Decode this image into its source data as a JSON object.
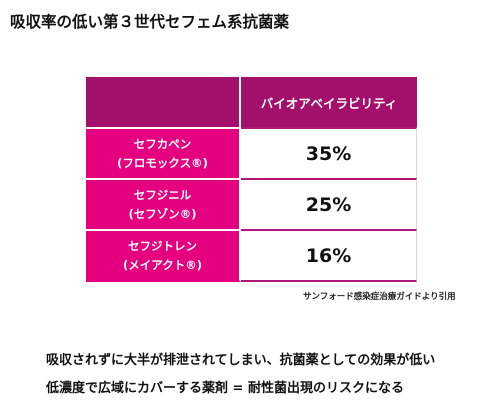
{
  "title": "吸収率の低い第３世代セフェム系抗菌薬",
  "table": {
    "header": "バイオアベイラビリティ",
    "rows": [
      {
        "drug": "セフカペン",
        "brand": "(フロモックス®)",
        "value": "35%"
      },
      {
        "drug": "セフジニル",
        "brand": "(セフゾン®)",
        "value": "25%"
      },
      {
        "drug": "セフジトレン",
        "brand": "(メイアクト®)",
        "value": "16%"
      }
    ]
  },
  "source": "サンフォード感染症治療ガイドより引用",
  "notes": [
    "吸収されずに大半が排泄されてしまい、抗菌薬としての効果が低い",
    "低濃度で広域にカバーする薬剤 = 耐性菌出現のリスクになる"
  ],
  "colors": {
    "header_bg": "#a3106b",
    "drug_bg": "#e4007f",
    "border_accent": "#b01778"
  }
}
